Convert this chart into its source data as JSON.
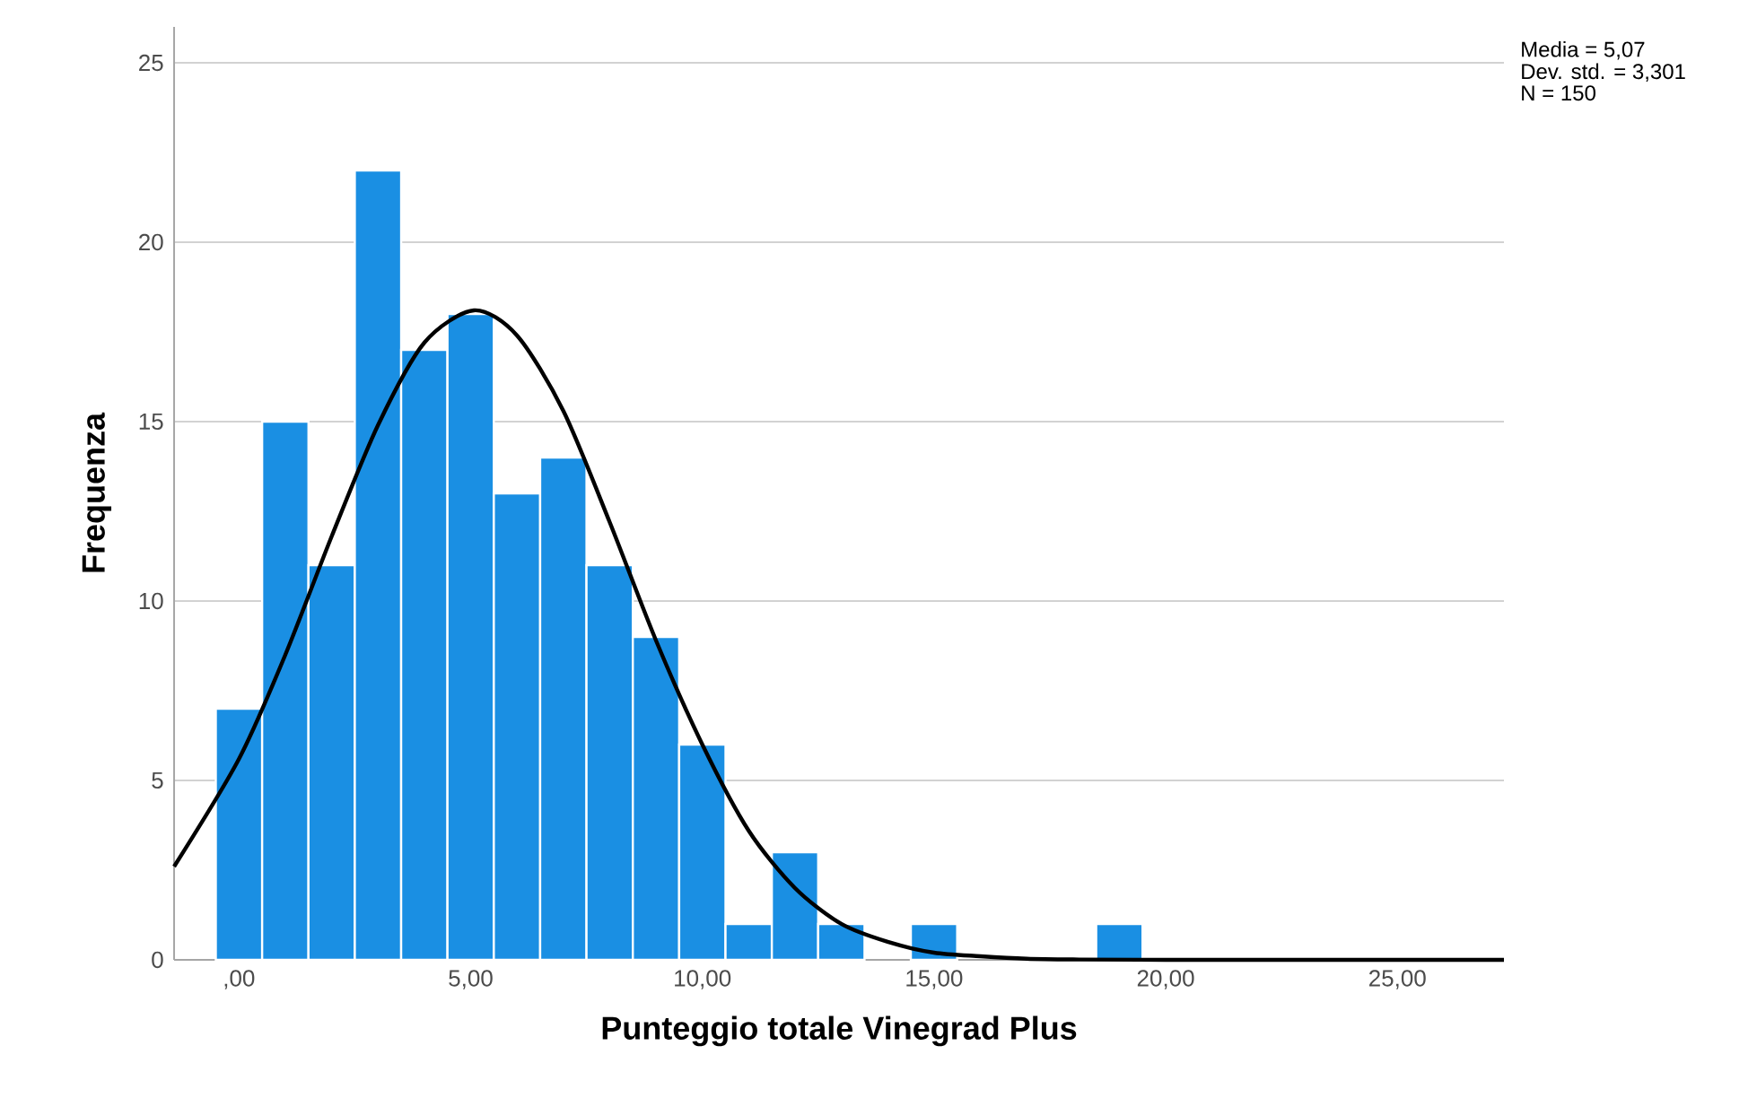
{
  "chart_data": {
    "type": "histogram",
    "xlabel": "Punteggio totale Vinegrad Plus",
    "ylabel": "Frequenza",
    "annotations": [
      "Media = 5,07",
      "Dev. std. = 3,301",
      "N = 150"
    ],
    "bins": [
      -0.5,
      0.5,
      1.5,
      2.5,
      3.5,
      4.5,
      5.5,
      6.5,
      7.5,
      8.5,
      9.5,
      10.5,
      11.5,
      12.5,
      13.5,
      14.5,
      15.5,
      16.5,
      17.5,
      18.5,
      19.5
    ],
    "values": [
      7,
      15,
      11,
      22,
      17,
      18,
      13,
      14,
      11,
      9,
      6,
      1,
      3,
      1,
      0,
      1,
      0,
      0,
      0,
      1
    ],
    "color": "#1a8fe3",
    "series": [
      {
        "type": "line",
        "color": "#000000",
        "x": [
          -1.4,
          0,
          1,
          2,
          3,
          4,
          5.07,
          6,
          7,
          8,
          9,
          10,
          11,
          12,
          13,
          14,
          15,
          16,
          17,
          18,
          20,
          27.3
        ],
        "values": [
          2.6,
          5.6,
          8.5,
          11.8,
          14.9,
          17.2,
          18.1,
          17.4,
          15.3,
          12.2,
          8.9,
          6.0,
          3.6,
          2.0,
          1.0,
          0.5,
          0.2,
          0.1,
          0.03,
          0.01,
          0,
          0
        ]
      }
    ],
    "xlim": [
      -1.4,
      27.3
    ],
    "ylim": [
      0,
      26
    ],
    "xticks": [
      {
        "value": 0,
        "label": ",00"
      },
      {
        "value": 5,
        "label": "5,00"
      },
      {
        "value": 10,
        "label": "10,00"
      },
      {
        "value": 15,
        "label": "15,00"
      },
      {
        "value": 20,
        "label": "20,00"
      },
      {
        "value": 25,
        "label": "25,00"
      }
    ],
    "yticks": [
      0,
      5,
      10,
      15,
      20,
      25
    ],
    "grid": "y"
  }
}
